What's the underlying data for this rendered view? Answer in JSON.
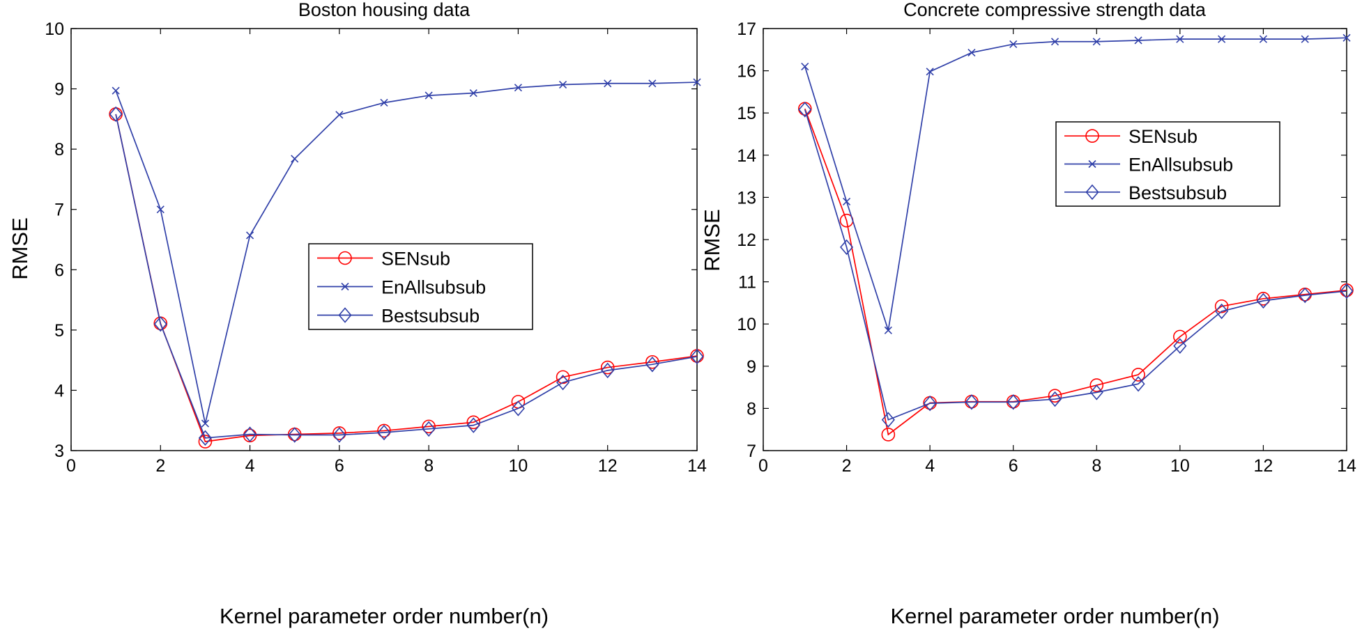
{
  "chart_data": [
    {
      "type": "line",
      "title": "Boston housing data",
      "xlabel": "Kernel parameter order number(n)",
      "ylabel": "RMSE",
      "xlim": [
        0,
        14
      ],
      "ylim": [
        3,
        10
      ],
      "xticks": [
        0,
        2,
        4,
        6,
        8,
        10,
        12,
        14
      ],
      "yticks": [
        3,
        4,
        5,
        6,
        7,
        8,
        9,
        10
      ],
      "legend_position": "center-right",
      "x": [
        1,
        2,
        3,
        4,
        5,
        6,
        7,
        8,
        9,
        10,
        11,
        12,
        13,
        14
      ],
      "series": [
        {
          "name": "SENsub",
          "color": "#ff0000",
          "marker": "circle",
          "values": [
            8.58,
            5.11,
            3.15,
            3.25,
            3.27,
            3.29,
            3.33,
            3.4,
            3.47,
            3.81,
            4.22,
            4.38,
            4.47,
            4.57
          ]
        },
        {
          "name": "EnAllsubsub",
          "color": "#2f3fa8",
          "marker": "x",
          "values": [
            8.97,
            7.0,
            3.45,
            6.57,
            7.84,
            8.57,
            8.77,
            8.89,
            8.93,
            9.02,
            9.07,
            9.09,
            9.09,
            9.11
          ]
        },
        {
          "name": "Bestsubsub",
          "color": "#2f3fa8",
          "marker": "diamond",
          "values": [
            8.58,
            5.1,
            3.21,
            3.27,
            3.26,
            3.26,
            3.3,
            3.36,
            3.42,
            3.7,
            4.13,
            4.33,
            4.43,
            4.56
          ]
        }
      ]
    },
    {
      "type": "line",
      "title": "Concrete compressive strength data",
      "xlabel": "Kernel parameter order number(n)",
      "ylabel": "RMSE",
      "xlim": [
        0,
        14
      ],
      "ylim": [
        7,
        17
      ],
      "xticks": [
        0,
        2,
        4,
        6,
        8,
        10,
        12,
        14
      ],
      "yticks": [
        7,
        8,
        9,
        10,
        11,
        12,
        13,
        14,
        15,
        16,
        17
      ],
      "legend_position": "upper-center-right",
      "x": [
        1,
        2,
        3,
        4,
        5,
        6,
        7,
        8,
        9,
        10,
        11,
        12,
        13,
        14
      ],
      "series": [
        {
          "name": "SENsub",
          "color": "#ff0000",
          "marker": "circle",
          "values": [
            15.1,
            12.45,
            7.38,
            8.13,
            8.16,
            8.16,
            8.3,
            8.55,
            8.8,
            9.7,
            10.42,
            10.6,
            10.7,
            10.8
          ]
        },
        {
          "name": "EnAllsubsub",
          "color": "#2f3fa8",
          "marker": "x",
          "values": [
            16.1,
            12.9,
            9.85,
            15.98,
            16.43,
            16.63,
            16.69,
            16.69,
            16.72,
            16.75,
            16.75,
            16.75,
            16.75,
            16.78
          ]
        },
        {
          "name": "Bestsubsub",
          "color": "#2f3fa8",
          "marker": "diamond",
          "values": [
            15.08,
            11.82,
            7.73,
            8.12,
            8.15,
            8.15,
            8.22,
            8.38,
            8.58,
            9.48,
            10.3,
            10.55,
            10.68,
            10.78
          ]
        }
      ]
    }
  ]
}
